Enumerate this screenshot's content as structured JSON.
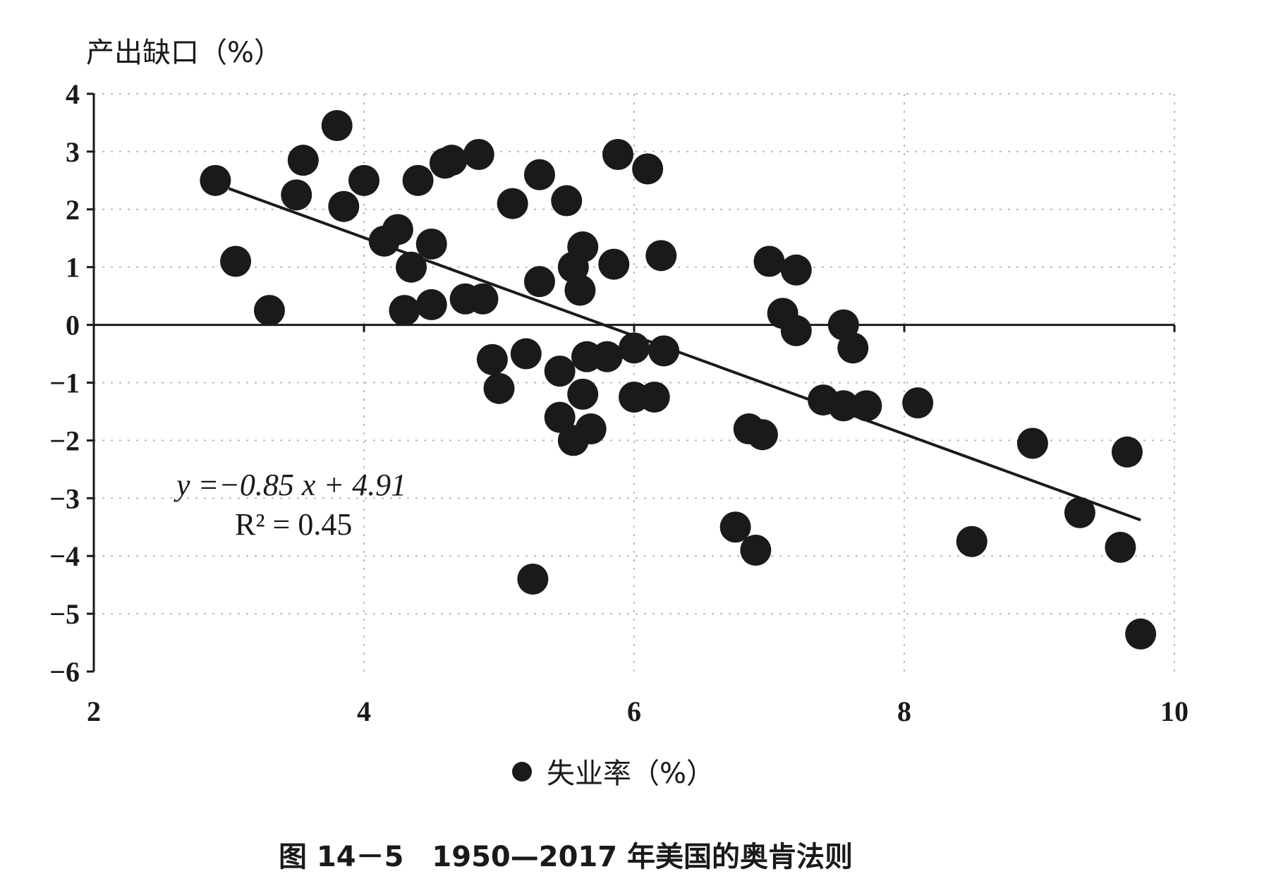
{
  "chart_data": {
    "type": "scatter",
    "ylabel": "产出缺口（%）",
    "xlabel": "失业率（%）",
    "legend": {
      "label": "失业率（%）",
      "placement": "bottom-center"
    },
    "xlim": [
      2,
      10
    ],
    "ylim": [
      -6,
      4
    ],
    "x_ticks": [
      2,
      4,
      6,
      8,
      10
    ],
    "y_ticks": [
      4,
      3,
      2,
      1,
      0,
      -1,
      -2,
      -3,
      -4,
      -5,
      -6
    ],
    "x_tick_labels": [
      "2",
      "4",
      "6",
      "8",
      "10"
    ],
    "y_tick_labels": [
      "4",
      "3",
      "2",
      "1",
      "0",
      "−1",
      "−2",
      "−3",
      "−4",
      "−5",
      "−6"
    ],
    "grid": true,
    "trendline": {
      "slope": -0.85,
      "intercept": 4.91,
      "x_start": 3.0,
      "x_end": 9.75
    },
    "equation_label": "y =−0.85 x + 4.91",
    "r2_label": "R² = 0.45",
    "caption": "图 14－5　1950—2017 年美国的奥肯法则",
    "colors": {
      "points": "#1a1a1a",
      "axes": "#1a1a1a",
      "grid": "#bbbbbb"
    },
    "points": [
      [
        2.9,
        2.5
      ],
      [
        3.05,
        1.1
      ],
      [
        3.3,
        0.25
      ],
      [
        3.5,
        2.25
      ],
      [
        3.55,
        2.85
      ],
      [
        3.8,
        3.45
      ],
      [
        3.85,
        2.05
      ],
      [
        4.0,
        2.5
      ],
      [
        4.15,
        1.45
      ],
      [
        4.25,
        1.65
      ],
      [
        4.3,
        0.25
      ],
      [
        4.35,
        1.0
      ],
      [
        4.4,
        2.5
      ],
      [
        4.5,
        1.4
      ],
      [
        4.5,
        0.35
      ],
      [
        4.6,
        2.8
      ],
      [
        4.65,
        2.85
      ],
      [
        4.75,
        0.45
      ],
      [
        4.85,
        2.95
      ],
      [
        4.88,
        0.45
      ],
      [
        4.95,
        -0.6
      ],
      [
        5.0,
        -1.1
      ],
      [
        5.1,
        2.1
      ],
      [
        5.2,
        -0.5
      ],
      [
        5.3,
        2.6
      ],
      [
        5.3,
        0.75
      ],
      [
        5.25,
        -4.4
      ],
      [
        5.45,
        -0.8
      ],
      [
        5.45,
        -1.6
      ],
      [
        5.5,
        2.15
      ],
      [
        5.55,
        1.0
      ],
      [
        5.55,
        -2.0
      ],
      [
        5.6,
        0.6
      ],
      [
        5.62,
        1.35
      ],
      [
        5.62,
        -1.2
      ],
      [
        5.65,
        -0.55
      ],
      [
        5.68,
        -1.8
      ],
      [
        5.8,
        -0.55
      ],
      [
        5.85,
        1.05
      ],
      [
        5.88,
        2.95
      ],
      [
        6.0,
        -0.4
      ],
      [
        6.0,
        -1.25
      ],
      [
        6.1,
        2.7
      ],
      [
        6.15,
        -1.25
      ],
      [
        6.2,
        1.2
      ],
      [
        6.22,
        -0.45
      ],
      [
        6.75,
        -3.5
      ],
      [
        6.85,
        -1.8
      ],
      [
        6.9,
        -3.9
      ],
      [
        6.95,
        -1.9
      ],
      [
        7.0,
        1.1
      ],
      [
        7.1,
        0.2
      ],
      [
        7.2,
        0.95
      ],
      [
        7.2,
        -0.1
      ],
      [
        7.4,
        -1.3
      ],
      [
        7.55,
        -1.4
      ],
      [
        7.55,
        0.0
      ],
      [
        7.62,
        -0.4
      ],
      [
        7.72,
        -1.4
      ],
      [
        8.1,
        -1.35
      ],
      [
        8.5,
        -3.75
      ],
      [
        8.95,
        -2.05
      ],
      [
        9.3,
        -3.25
      ],
      [
        9.6,
        -3.85
      ],
      [
        9.65,
        -2.2
      ],
      [
        9.75,
        -5.35
      ]
    ]
  }
}
